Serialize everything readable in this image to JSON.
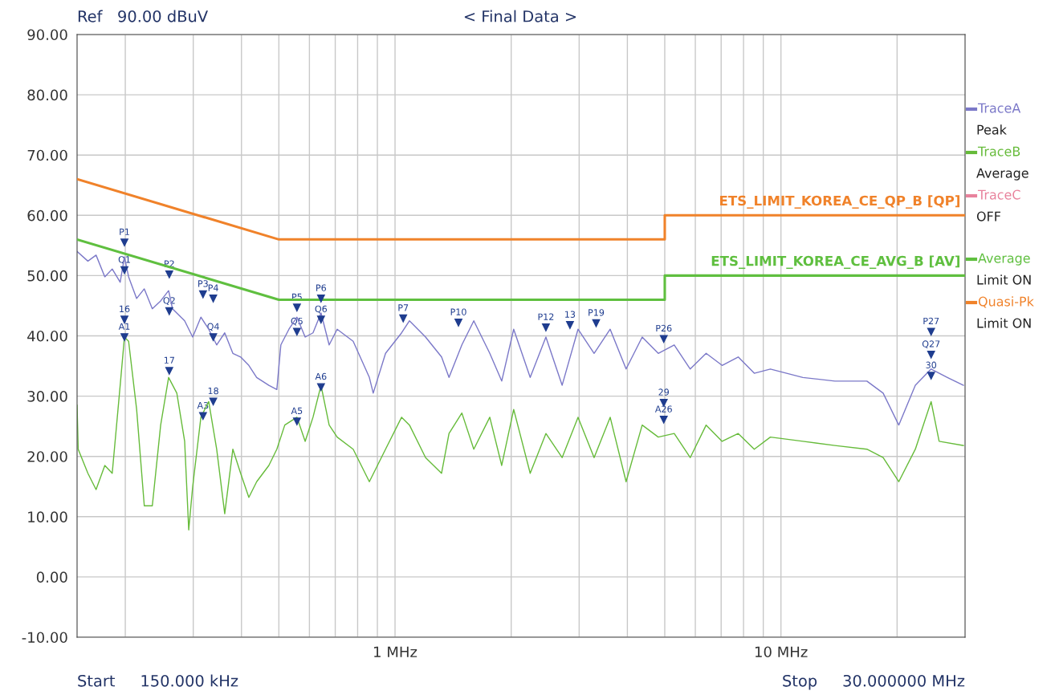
{
  "chart_data": {
    "type": "line",
    "title": "< Final Data >",
    "xlim": [
      0.15,
      30
    ],
    "ylim": [
      -10,
      90
    ],
    "log": "x",
    "grid": true,
    "legend": "right",
    "xticks": [
      {
        "value": 0.2,
        "label": null
      },
      {
        "value": 0.3,
        "label": null
      },
      {
        "value": 0.4,
        "label": null
      },
      {
        "value": 0.5,
        "label": null
      },
      {
        "value": 0.6,
        "label": null
      },
      {
        "value": 0.7,
        "label": null
      },
      {
        "value": 0.8,
        "label": null
      },
      {
        "value": 0.9,
        "label": null
      },
      {
        "value": 1,
        "label": "1 MHz"
      },
      {
        "value": 2,
        "label": null
      },
      {
        "value": 3,
        "label": null
      },
      {
        "value": 4,
        "label": null
      },
      {
        "value": 5,
        "label": null
      },
      {
        "value": 6,
        "label": null
      },
      {
        "value": 7,
        "label": null
      },
      {
        "value": 8,
        "label": null
      },
      {
        "value": 9,
        "label": null
      },
      {
        "value": 10,
        "label": "10 MHz"
      },
      {
        "value": 20,
        "label": null
      }
    ],
    "yticks": [
      {
        "value": -10,
        "label": "-10.00"
      },
      {
        "value": 0,
        "label": "0.00"
      },
      {
        "value": 10,
        "label": "10.00"
      },
      {
        "value": 20,
        "label": "20.00"
      },
      {
        "value": 30,
        "label": "30.00"
      },
      {
        "value": 40,
        "label": "40.00"
      },
      {
        "value": 50,
        "label": "50.00"
      },
      {
        "value": 60,
        "label": "60.00"
      },
      {
        "value": 70,
        "label": "70.00"
      },
      {
        "value": 80,
        "label": "80.00"
      },
      {
        "value": 90,
        "label": "90.00"
      }
    ],
    "series": [
      {
        "name": "TraceA",
        "color": "#7b78c8",
        "x": [
          0.15,
          0.16,
          0.168,
          0.177,
          0.185,
          0.194,
          0.199,
          0.204,
          0.214,
          0.224,
          0.235,
          0.247,
          0.259,
          0.265,
          0.285,
          0.299,
          0.314,
          0.329,
          0.345,
          0.362,
          0.38,
          0.398,
          0.418,
          0.438,
          0.471,
          0.494,
          0.506,
          0.531,
          0.557,
          0.585,
          0.613,
          0.643,
          0.675,
          0.708,
          0.779,
          0.858,
          0.878,
          0.945,
          1.04,
          1.09,
          1.2,
          1.32,
          1.38,
          1.49,
          1.6,
          1.76,
          1.89,
          2.03,
          2.24,
          2.46,
          2.71,
          2.98,
          3.28,
          3.61,
          3.97,
          4.37,
          4.81,
          5.29,
          5.82,
          6.4,
          7.04,
          7.75,
          8.53,
          9.39,
          11.4,
          13.8,
          16.7,
          18.4,
          20.2,
          22.3,
          24.5,
          27.0,
          29.7
        ],
        "values": [
          54.0,
          52.4,
          53.4,
          49.8,
          51.1,
          48.9,
          53.1,
          49.8,
          46.2,
          47.8,
          44.5,
          45.8,
          47.5,
          44.5,
          42.5,
          39.8,
          43.1,
          41.1,
          38.5,
          40.5,
          37.1,
          36.5,
          35.1,
          33.1,
          31.8,
          31.1,
          38.5,
          41.1,
          43.1,
          39.8,
          40.5,
          43.8,
          38.5,
          41.1,
          39.1,
          33.1,
          30.5,
          37.1,
          40.5,
          42.5,
          39.8,
          36.5,
          33.1,
          38.5,
          42.5,
          37.1,
          32.5,
          41.1,
          33.1,
          39.8,
          31.8,
          41.1,
          37.1,
          41.1,
          34.5,
          39.8,
          37.1,
          38.5,
          34.5,
          37.1,
          35.1,
          36.5,
          33.8,
          34.5,
          33.1,
          32.5,
          32.5,
          30.5,
          25.2,
          31.8,
          34.5,
          33.1,
          31.8
        ]
      },
      {
        "name": "TraceB",
        "color": "#66bb3a",
        "x": [
          0.15,
          0.151,
          0.16,
          0.168,
          0.177,
          0.185,
          0.194,
          0.199,
          0.204,
          0.214,
          0.224,
          0.235,
          0.247,
          0.259,
          0.272,
          0.285,
          0.292,
          0.299,
          0.314,
          0.329,
          0.345,
          0.362,
          0.38,
          0.398,
          0.418,
          0.438,
          0.471,
          0.494,
          0.518,
          0.557,
          0.585,
          0.613,
          0.643,
          0.675,
          0.708,
          0.779,
          0.858,
          0.945,
          1.04,
          1.09,
          1.2,
          1.32,
          1.38,
          1.49,
          1.6,
          1.76,
          1.89,
          2.03,
          2.24,
          2.46,
          2.71,
          2.98,
          3.28,
          3.61,
          3.97,
          4.37,
          4.81,
          5.29,
          5.82,
          6.4,
          7.04,
          7.75,
          8.53,
          9.39,
          11.4,
          13.8,
          16.7,
          18.4,
          20.2,
          22.3,
          24.5,
          25.7,
          29.7
        ],
        "values": [
          28.5,
          21.2,
          17.2,
          14.5,
          18.5,
          17.2,
          31.8,
          39.8,
          39.1,
          27.8,
          11.8,
          11.8,
          25.2,
          33.1,
          30.5,
          22.5,
          7.8,
          15.0,
          26.5,
          29.1,
          21.2,
          10.5,
          21.2,
          17.2,
          13.2,
          15.8,
          18.5,
          21.2,
          25.2,
          26.5,
          22.5,
          26.5,
          31.8,
          25.2,
          23.2,
          21.2,
          15.8,
          21.2,
          26.5,
          25.2,
          19.8,
          17.2,
          23.8,
          27.2,
          21.2,
          26.5,
          18.5,
          27.8,
          17.2,
          23.8,
          19.8,
          26.5,
          19.8,
          26.5,
          15.8,
          25.2,
          23.2,
          23.8,
          19.8,
          25.2,
          22.5,
          23.8,
          21.2,
          23.2,
          22.5,
          21.8,
          21.2,
          19.8,
          15.8,
          21.2,
          29.1,
          22.5,
          21.8
        ]
      },
      {
        "name": "TraceC",
        "color": "#e8829c"
      },
      {
        "name": "Average",
        "color": "#5fbf3f",
        "x": [
          0.15,
          0.5,
          5,
          5,
          30
        ],
        "values": [
          56,
          46,
          46,
          50,
          50
        ]
      },
      {
        "name": "Quasi-Pk",
        "color": "#f0822a",
        "x": [
          0.15,
          0.5,
          5,
          5,
          30
        ],
        "values": [
          66,
          56,
          56,
          60,
          60
        ]
      }
    ],
    "annotations": [
      "Ref   90.00 dBuV",
      "Start     150.000 kHz",
      "Stop     30.000000 MHz",
      "Peak",
      "Average",
      "OFF",
      "Limit ON",
      "Limit ON",
      "ETS_LIMIT_KOREA_CE_AVG_B [AV]",
      "ETS_LIMIT_KOREA_CE_QP_B [QP]",
      {
        "text": "P1",
        "x": 0.199,
        "y": 55.5
      },
      {
        "text": "Q1",
        "x": 0.199,
        "y": 50.9
      },
      {
        "text": "16",
        "x": 0.199,
        "y": 42.7
      },
      {
        "text": "A1",
        "x": 0.199,
        "y": 39.8
      },
      {
        "text": "P2",
        "x": 0.26,
        "y": 50.2
      },
      {
        "text": "Q2",
        "x": 0.26,
        "y": 44.1
      },
      {
        "text": "17",
        "x": 0.26,
        "y": 34.2
      },
      {
        "text": "P3",
        "x": 0.318,
        "y": 46.9
      },
      {
        "text": "P4",
        "x": 0.338,
        "y": 46.2
      },
      {
        "text": "Q4",
        "x": 0.338,
        "y": 39.8
      },
      {
        "text": "18",
        "x": 0.338,
        "y": 29.1
      },
      {
        "text": "A3",
        "x": 0.318,
        "y": 26.7
      },
      {
        "text": "P5",
        "x": 0.557,
        "y": 44.7
      },
      {
        "text": "Q5",
        "x": 0.557,
        "y": 40.7
      },
      {
        "text": "A5",
        "x": 0.557,
        "y": 25.8
      },
      {
        "text": "P6",
        "x": 0.643,
        "y": 46.2
      },
      {
        "text": "Q6",
        "x": 0.643,
        "y": 42.7
      },
      {
        "text": "A6",
        "x": 0.643,
        "y": 31.5
      },
      {
        "text": "P7",
        "x": 1.05,
        "y": 42.9
      },
      {
        "text": "P10",
        "x": 1.46,
        "y": 42.2
      },
      {
        "text": "P12",
        "x": 2.46,
        "y": 41.4
      },
      {
        "text": "13",
        "x": 2.84,
        "y": 41.8
      },
      {
        "text": "P19",
        "x": 3.32,
        "y": 42.1
      },
      {
        "text": "P26",
        "x": 4.97,
        "y": 39.5
      },
      {
        "text": "29",
        "x": 4.97,
        "y": 28.9
      },
      {
        "text": "A26",
        "x": 4.97,
        "y": 26.1
      },
      {
        "text": "P27",
        "x": 24.5,
        "y": 40.7
      },
      {
        "text": "Q27",
        "x": 24.5,
        "y": 36.9
      },
      {
        "text": "30",
        "x": 24.5,
        "y": 33.4
      }
    ]
  }
}
